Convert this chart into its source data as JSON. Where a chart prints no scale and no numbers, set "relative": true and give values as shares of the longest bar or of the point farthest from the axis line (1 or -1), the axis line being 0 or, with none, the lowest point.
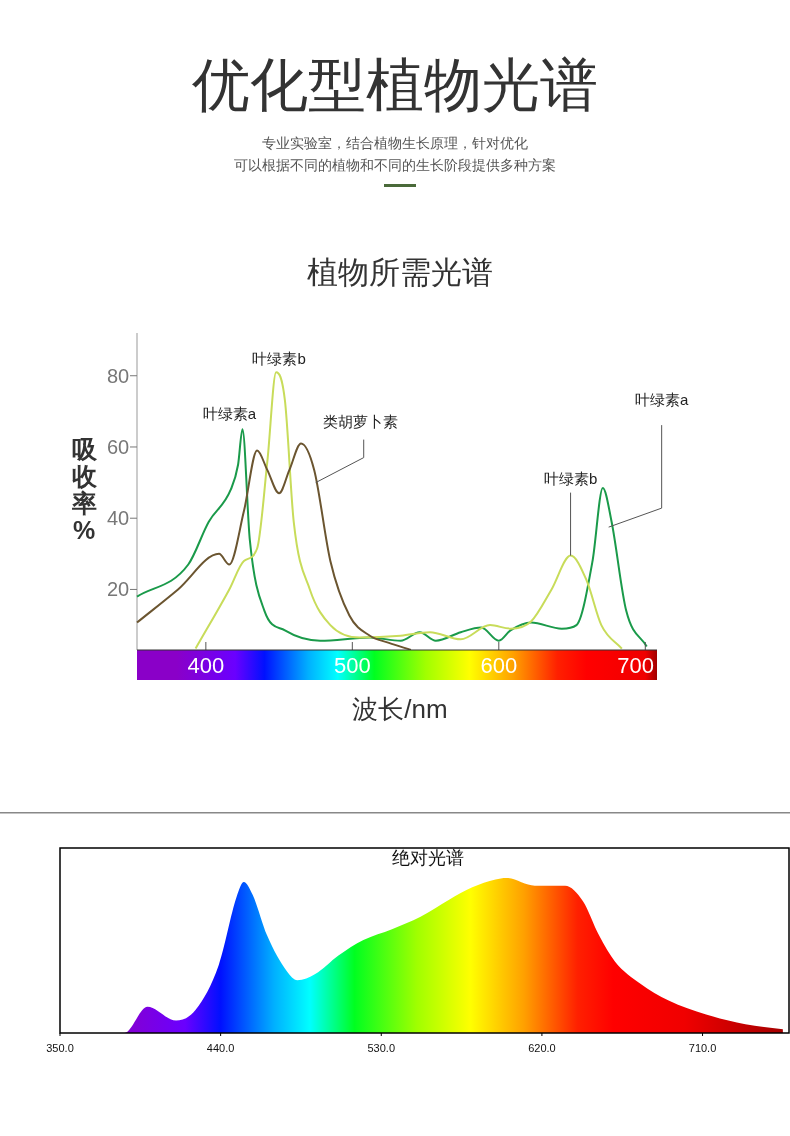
{
  "chart_data": [
    {
      "type": "other",
      "title": "优化型植物光谱",
      "annotations": [
        "专业实验室，结合植物生长原理，针对优化",
        "可以根据不同的植物和不同的生长阶段提供多种方案"
      ]
    },
    {
      "type": "line",
      "title": "植物所需光谱",
      "xlabel": "波长/nm",
      "ylabel": "吸收率%",
      "xlim": [
        353,
        708
      ],
      "ylim": [
        3,
        92
      ],
      "xticks": [
        400,
        500,
        600,
        700
      ],
      "yticks": [
        20,
        40,
        60,
        80
      ],
      "grid": false,
      "series": [
        {
          "color": "#1a9a4a",
          "x": [
            353,
            388,
            402,
            417,
            422,
            425,
            430,
            440,
            454,
            478,
            512,
            533,
            546,
            557,
            574,
            588,
            600,
            608,
            622,
            643,
            653,
            664,
            671,
            677,
            687,
            701
          ],
          "values": [
            18,
            27,
            39,
            48,
            55,
            65,
            34,
            14,
            8.5,
            5.6,
            6.5,
            5.6,
            8,
            5.6,
            8,
            9.3,
            5.6,
            8.5,
            10.7,
            9,
            10,
            28,
            48.5,
            39,
            14,
            4
          ]
        },
        {
          "color": "#c8dc5a",
          "x": [
            393,
            416,
            426,
            435,
            442,
            448,
            454,
            460,
            471,
            485,
            505,
            533,
            553,
            574,
            594,
            608,
            622,
            636,
            649,
            660,
            670,
            684
          ],
          "values": [
            3.4,
            20,
            28,
            31.5,
            56,
            81,
            73,
            39,
            20,
            10,
            6.5,
            7,
            8,
            6,
            10,
            9,
            11,
            20,
            29.5,
            22.5,
            10,
            3.4
          ]
        },
        {
          "color": "#6b5530",
          "x": [
            353,
            381,
            409,
            416,
            426,
            435,
            442,
            450,
            457,
            465,
            474,
            485,
            498,
            512,
            525,
            540
          ],
          "values": [
            10.7,
            20,
            30,
            27,
            42,
            59,
            53.5,
            47,
            53.5,
            61,
            53.5,
            28,
            12.7,
            7,
            5,
            3
          ]
        }
      ],
      "annotations": [
        {
          "text": "叶绿素a",
          "x": 425,
          "y": 65
        },
        {
          "text": "叶绿素b",
          "x": 448,
          "y": 81
        },
        {
          "text": "类胡萝卜素",
          "x": 475,
          "y": 50
        },
        {
          "text": "叶绿素b",
          "x": 649,
          "y": 29.5
        },
        {
          "text": "叶绿素a",
          "x": 675,
          "y": 37.5
        }
      ]
    },
    {
      "type": "area",
      "title": "绝对光谱",
      "relative": true,
      "xlim": [
        350,
        759
      ],
      "xticks": [
        {
          "value": 350,
          "label": "350.0"
        },
        {
          "value": 440,
          "label": "440.0"
        },
        {
          "value": 530,
          "label": "530.0"
        },
        {
          "value": 620,
          "label": "620.0"
        },
        {
          "value": 710,
          "label": "710.0"
        }
      ],
      "x": [
        350,
        386,
        399,
        415,
        426,
        439,
        449,
        453,
        458,
        466,
        477,
        483,
        493,
        506,
        520,
        536,
        552,
        568,
        581,
        594,
        600,
        616,
        627,
        633,
        643,
        652,
        661,
        675,
        691,
        712,
        734,
        755
      ],
      "values": [
        0,
        0,
        0.17,
        0.08,
        0.15,
        0.44,
        0.88,
        0.975,
        0.89,
        0.63,
        0.4,
        0.34,
        0.38,
        0.5,
        0.6,
        0.67,
        0.75,
        0.86,
        0.94,
        0.99,
        1.0,
        0.95,
        0.95,
        0.95,
        0.85,
        0.63,
        0.46,
        0.32,
        0.21,
        0.12,
        0.056,
        0.025
      ]
    }
  ]
}
